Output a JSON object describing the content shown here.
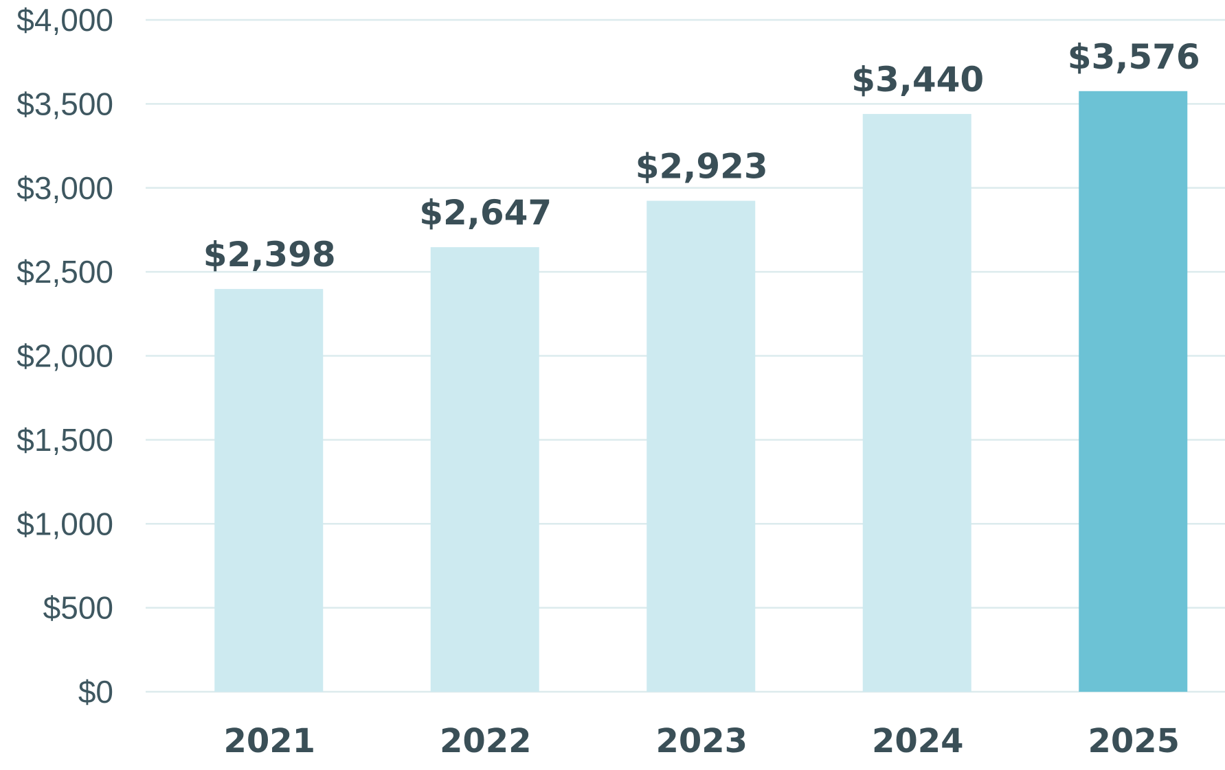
{
  "chart_data": {
    "type": "bar",
    "title": "",
    "xlabel": "",
    "ylabel": "",
    "categories": [
      "2021",
      "2022",
      "2023",
      "2024",
      "2025"
    ],
    "values": [
      2398,
      2647,
      2923,
      3440,
      3576
    ],
    "value_labels": [
      "$2,398",
      "$2,647",
      "$2,923",
      "$3,440",
      "$3,576"
    ],
    "ylim": [
      0,
      4000
    ],
    "yticks": [
      0,
      500,
      1000,
      1500,
      2000,
      2500,
      3000,
      3500,
      4000
    ],
    "ytick_labels": [
      "$0",
      "$500",
      "$1,000",
      "$1,500",
      "$2,000",
      "$2,500",
      "$3,000",
      "$3,500",
      "$4,000"
    ],
    "grid": true,
    "legend": "none",
    "colors": {
      "bar": "#cdeaf0",
      "highlight_bar": "#6cc2d5",
      "gridline": "#dcebed",
      "text": "#3a4f57"
    },
    "highlight_index": 4
  }
}
